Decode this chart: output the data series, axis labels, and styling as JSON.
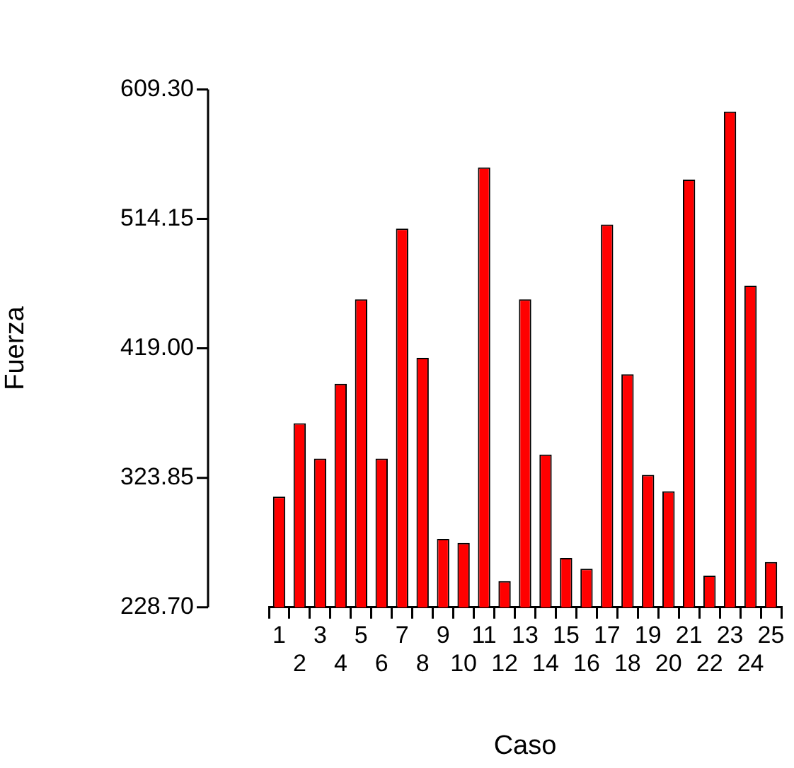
{
  "chart_data": {
    "type": "bar",
    "xlabel": "Caso",
    "ylabel": "Fuerza",
    "categories": [
      "1",
      "2",
      "3",
      "4",
      "5",
      "6",
      "7",
      "8",
      "9",
      "10",
      "11",
      "12",
      "13",
      "14",
      "15",
      "16",
      "17",
      "18",
      "19",
      "20",
      "21",
      "22",
      "23",
      "24",
      "25"
    ],
    "values": [
      310,
      364,
      338,
      393,
      455,
      338,
      507,
      412,
      279,
      276,
      552,
      248,
      455,
      341,
      265,
      257,
      510,
      400,
      326,
      314,
      543,
      252,
      593,
      465,
      262
    ],
    "color": "#ff0000",
    "ylim": [
      228.7,
      609.3
    ],
    "yticks": [
      {
        "value": 228.7,
        "label": "228.70"
      },
      {
        "value": 323.85,
        "label": "323.85"
      },
      {
        "value": 419.0,
        "label": "419.00"
      },
      {
        "value": 514.15,
        "label": "514.15"
      },
      {
        "value": 609.3,
        "label": "609.30"
      }
    ]
  }
}
